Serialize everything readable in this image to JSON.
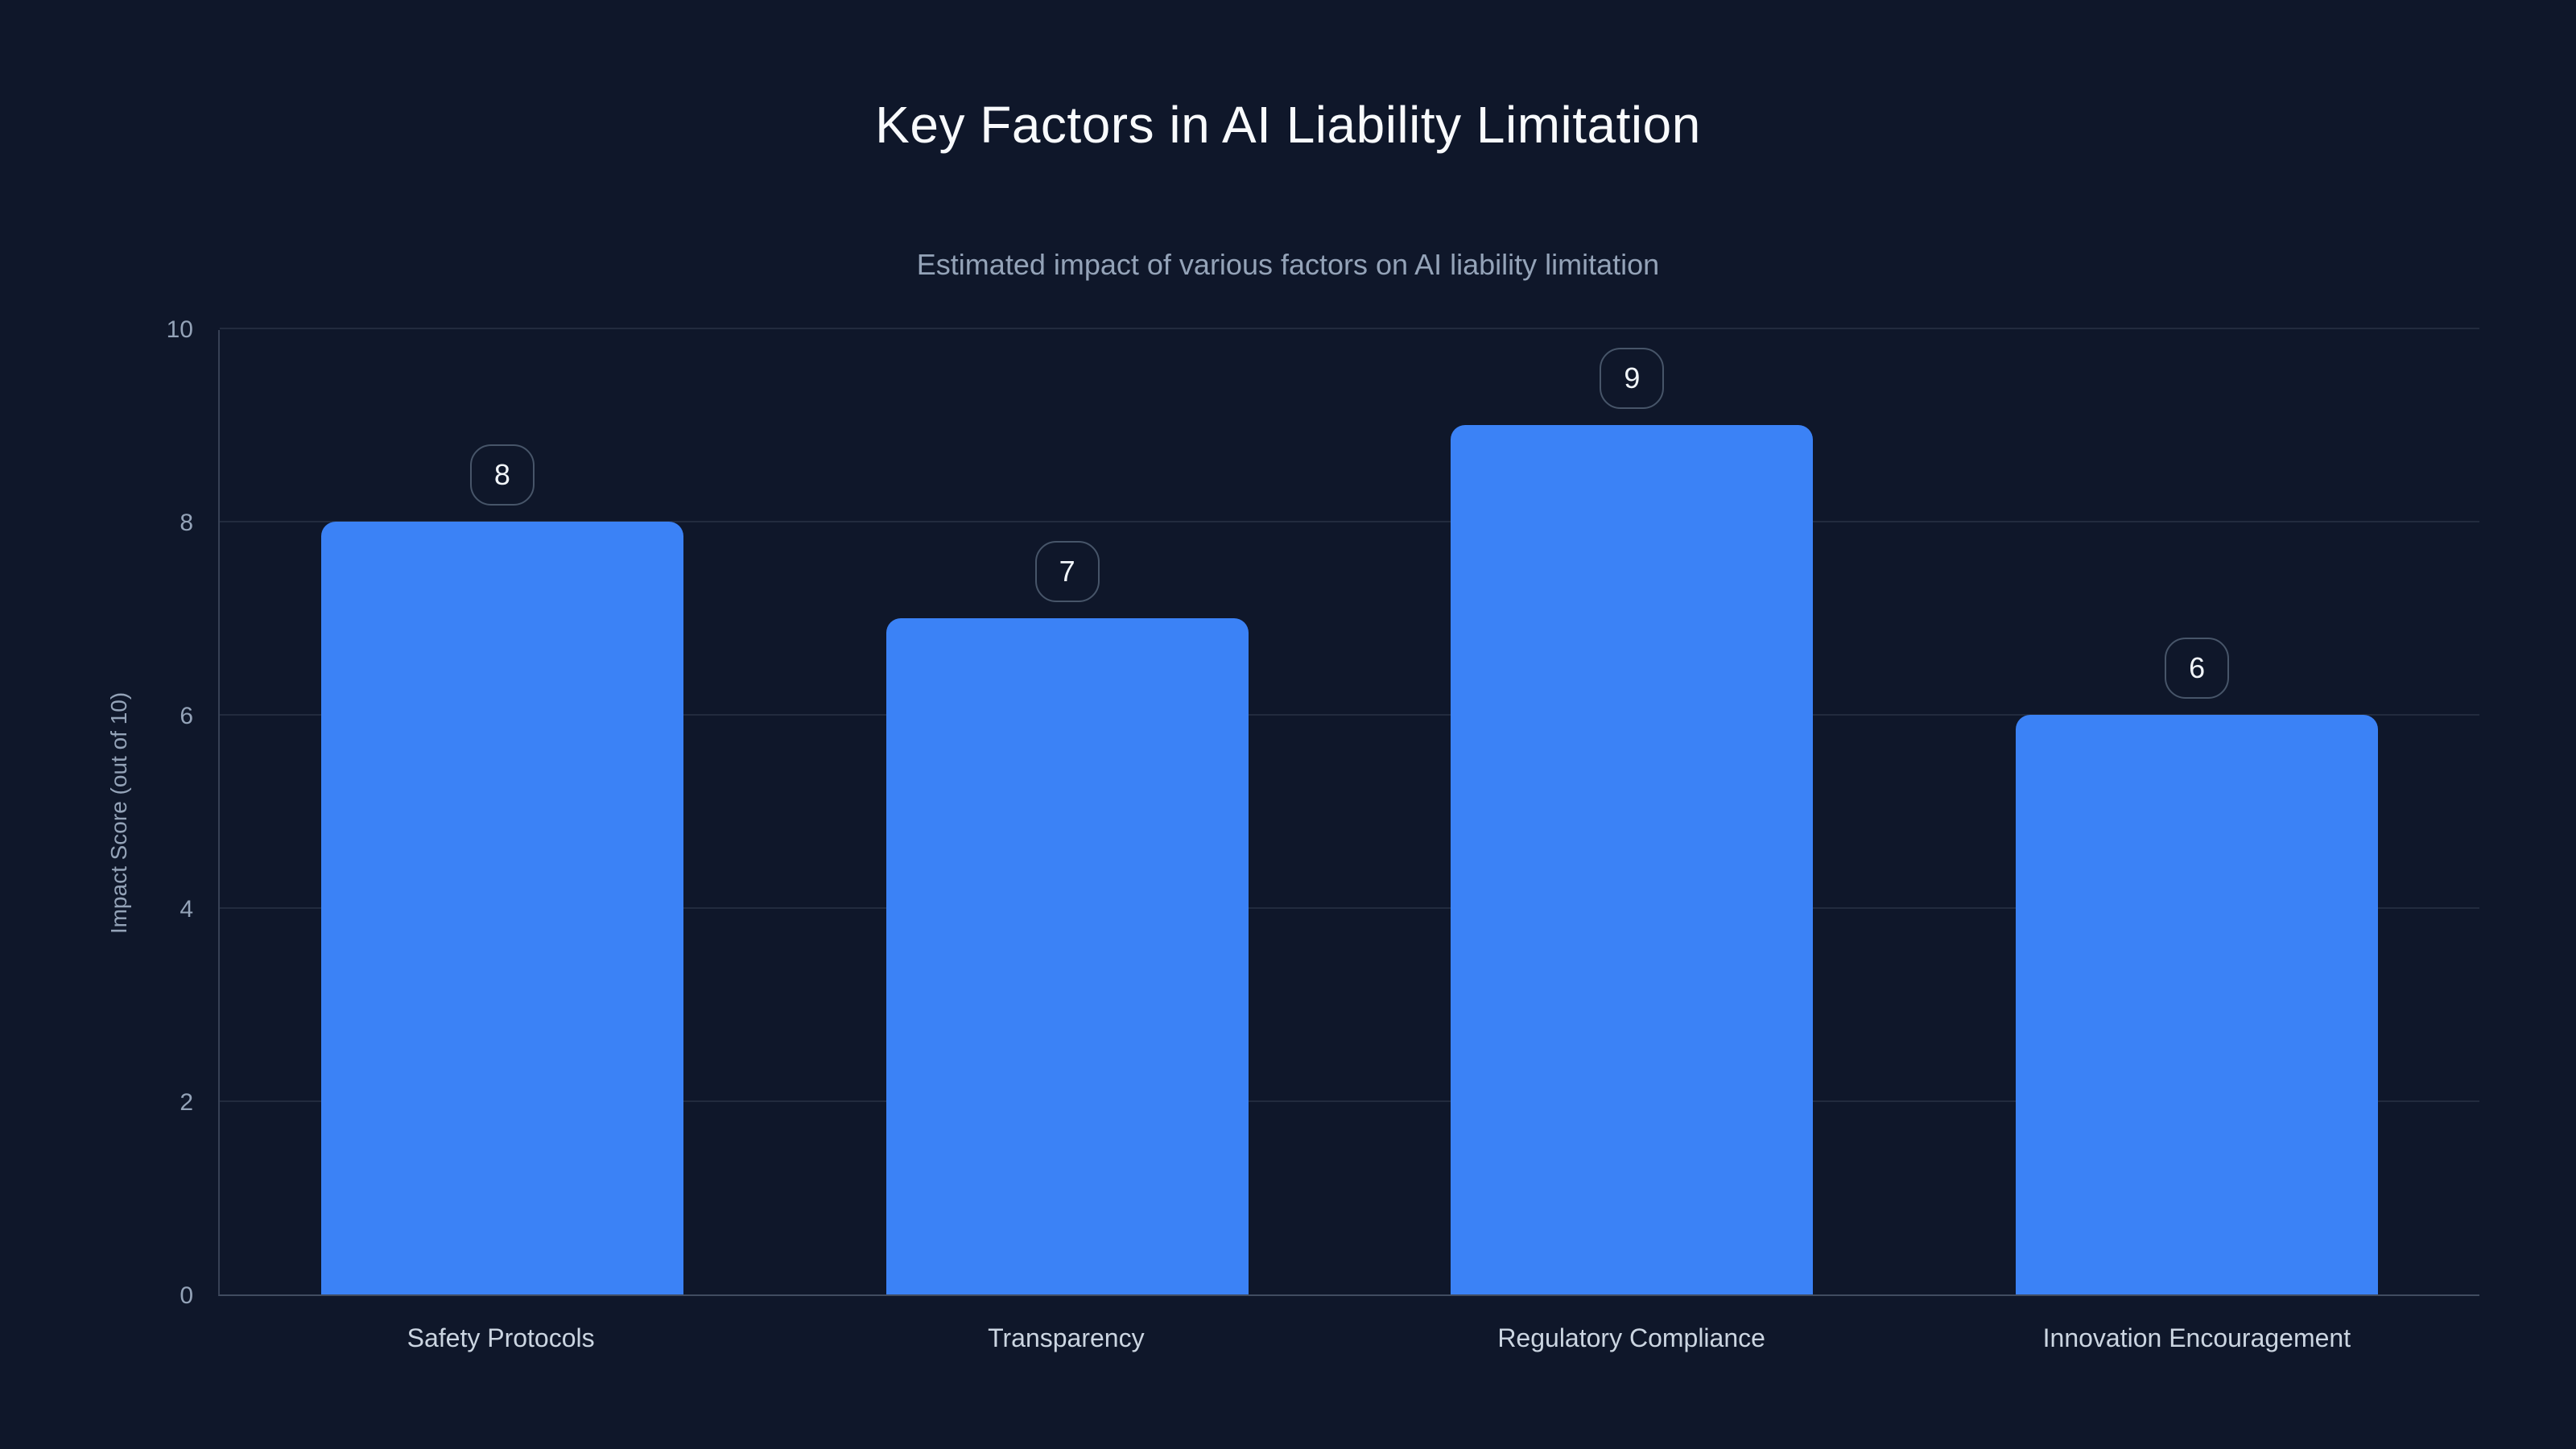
{
  "page": {
    "background_color": "#0f172a"
  },
  "chart_data": {
    "type": "bar",
    "title": "Key Factors in AI Liability Limitation",
    "subtitle": "Estimated impact of various factors on AI liability limitation",
    "categories": [
      "Safety Protocols",
      "Transparency",
      "Regulatory Compliance",
      "Innovation Encouragement"
    ],
    "values": [
      8,
      7,
      9,
      6
    ],
    "value_labels": [
      "8",
      "7",
      "9",
      "6"
    ],
    "xlabel": "",
    "ylabel": "Impact Score (out of 10)",
    "ylim": [
      0,
      10
    ],
    "yticks": [
      0,
      2,
      4,
      6,
      8,
      10
    ],
    "grid": "horizontal",
    "legend": "none",
    "bar_color": "#3b82f6",
    "value_box_border_color": "#475569",
    "value_box_text_color": "#f1f5f9",
    "title_color": "#f8fafc",
    "subtitle_color": "#94a3b8",
    "tick_label_color": "#94a3b8",
    "category_label_color": "#cbd5e1"
  }
}
